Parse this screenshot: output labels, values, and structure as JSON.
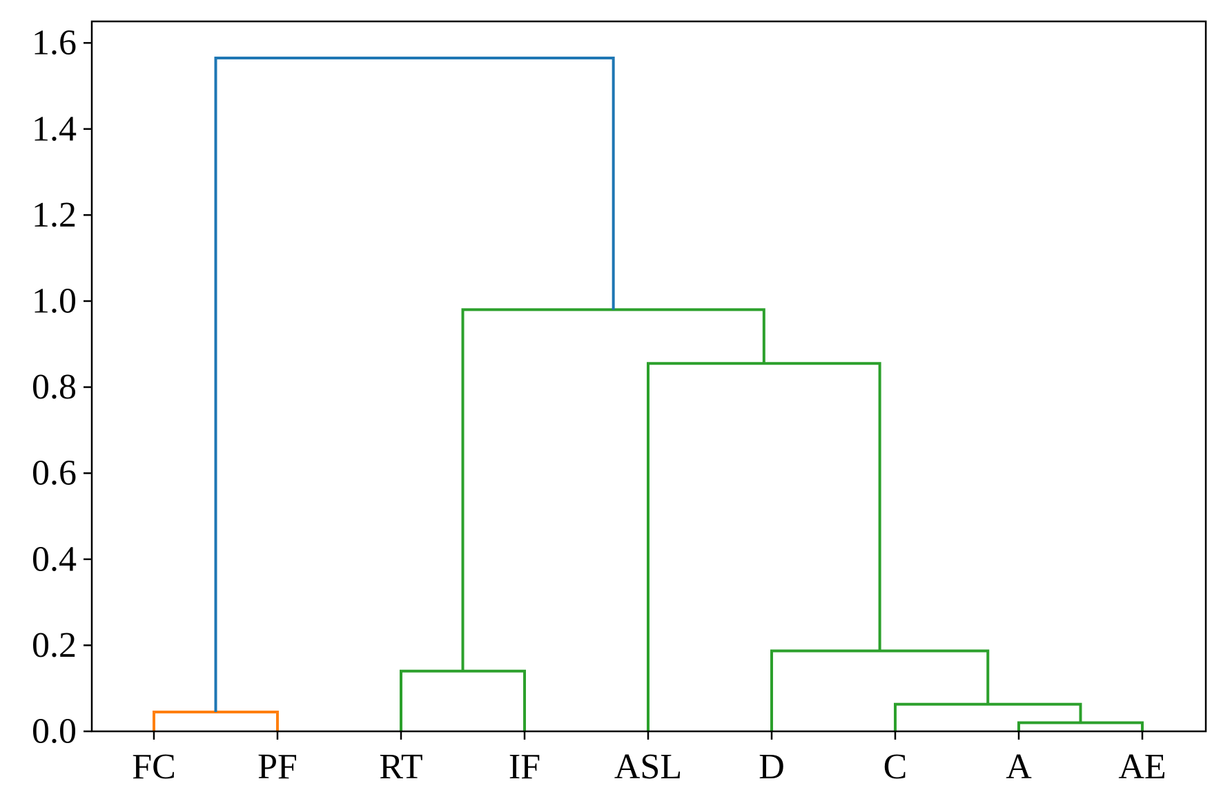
{
  "chart_data": {
    "type": "dendrogram",
    "title": "",
    "xlabel": "",
    "ylabel": "",
    "ylim": [
      0,
      1.65
    ],
    "grid": false,
    "leaves": [
      "FC",
      "PF",
      "RT",
      "IF",
      "ASL",
      "D",
      "C",
      "A",
      "AE"
    ],
    "yticks": [
      {
        "value": 0.0,
        "label": "0.0"
      },
      {
        "value": 0.2,
        "label": "0.2"
      },
      {
        "value": 0.4,
        "label": "0.4"
      },
      {
        "value": 0.6,
        "label": "0.6"
      },
      {
        "value": 0.8,
        "label": "0.8"
      },
      {
        "value": 1.0,
        "label": "1.0"
      },
      {
        "value": 1.2,
        "label": "1.2"
      },
      {
        "value": 1.4,
        "label": "1.4"
      },
      {
        "value": 1.6,
        "label": "1.6"
      }
    ],
    "merges": [
      {
        "id": "m1",
        "left": "FC",
        "right": "PF",
        "height": 0.045,
        "color": "#ff7f0e"
      },
      {
        "id": "m2",
        "left": "RT",
        "right": "IF",
        "height": 0.14,
        "color": "#2ca02c"
      },
      {
        "id": "m3",
        "left": "A",
        "right": "AE",
        "height": 0.02,
        "color": "#2ca02c"
      },
      {
        "id": "m4",
        "left": "C",
        "right": "m3",
        "height": 0.063,
        "color": "#2ca02c"
      },
      {
        "id": "m5",
        "left": "D",
        "right": "m4",
        "height": 0.187,
        "color": "#2ca02c"
      },
      {
        "id": "m6",
        "left": "ASL",
        "right": "m5",
        "height": 0.855,
        "color": "#2ca02c"
      },
      {
        "id": "m7",
        "left": "m2",
        "right": "m6",
        "height": 0.98,
        "color": "#2ca02c"
      },
      {
        "id": "m8",
        "left": "m1",
        "right": "m7",
        "height": 1.565,
        "color": "#1f77b4"
      }
    ],
    "colors": {
      "above_threshold": "#1f77b4",
      "cluster_1": "#ff7f0e",
      "cluster_2": "#2ca02c",
      "axes": "#000000"
    }
  }
}
